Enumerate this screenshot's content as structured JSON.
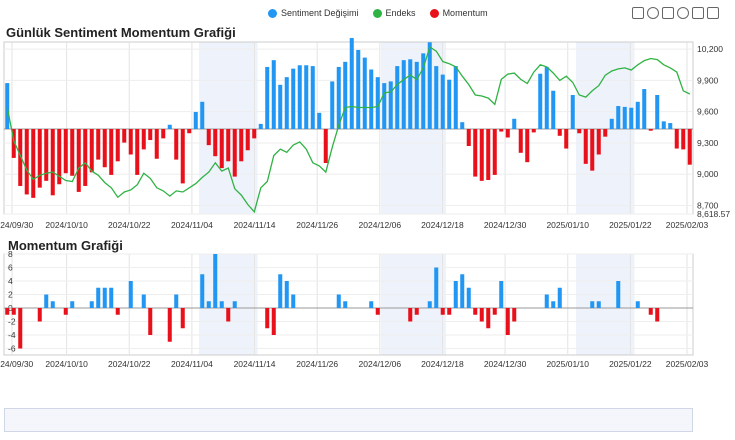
{
  "legend": {
    "items": [
      {
        "label": "Sentiment Değişimi",
        "color": "#2196F3"
      },
      {
        "label": "Endeks",
        "color": "#2FB344"
      },
      {
        "label": "Momentum",
        "color": "#E8101A"
      }
    ]
  },
  "colors": {
    "positive": "#2196F3",
    "negative": "#E8101A",
    "index": "#2FB344"
  },
  "toolbar": {
    "icons": [
      "rect-select-icon",
      "lasso-select-icon",
      "zoom-icon",
      "zoom-reset-icon",
      "restore-icon",
      "save-image-icon"
    ]
  },
  "chart_data": [
    {
      "type": "bar",
      "title": "Günlük Sentiment Momentum Grafiği",
      "x_start": "2024-09-28",
      "x_end": "2025-02-03",
      "xticks": [
        "2024/09/30",
        "2024/10/10",
        "2024/10/22",
        "2024/11/04",
        "2024/11/14",
        "2024/11/26",
        "2024/12/06",
        "2024/12/18",
        "2024/12/30",
        "2025/01/10",
        "2025/01/22",
        "2025/02/03"
      ],
      "yticks_left": [],
      "y2ticks": [
        "10,200",
        "9,900",
        "9,600",
        "9,300",
        "9,000",
        "8,700",
        "8,618.57"
      ],
      "y2lim": [
        8618.57,
        10230
      ],
      "sentiment": [
        0.54,
        -0.34,
        -0.67,
        -0.77,
        -0.81,
        -0.69,
        -0.61,
        -0.78,
        -0.65,
        -0.52,
        -0.55,
        -0.74,
        -0.67,
        -0.51,
        -0.36,
        -0.45,
        -0.54,
        -0.38,
        -0.16,
        -0.3,
        -0.54,
        -0.24,
        -0.13,
        -0.35,
        -0.11,
        0.05,
        -0.36,
        -0.64,
        -0.05,
        0.2,
        0.32,
        -0.19,
        -0.32,
        -0.46,
        -0.38,
        -0.56,
        -0.38,
        -0.25,
        -0.11,
        0.06,
        0.73,
        0.81,
        0.52,
        0.61,
        0.71,
        0.75,
        0.75,
        0.74,
        0.19,
        -0.4,
        0.56,
        0.73,
        0.79,
        1.07,
        0.93,
        0.84,
        0.7,
        0.61,
        0.54,
        0.56,
        0.74,
        0.81,
        0.82,
        0.79,
        0.89,
        1.02,
        0.74,
        0.64,
        0.58,
        0.74,
        0.08,
        -0.2,
        -0.56,
        -0.61,
        -0.6,
        -0.54,
        -0.03,
        -0.1,
        0.12,
        -0.28,
        -0.39,
        -0.04,
        0.65,
        0.73,
        0.45,
        -0.08,
        -0.23,
        0.4,
        -0.05,
        -0.41,
        -0.49,
        -0.3,
        -0.09,
        0.12,
        0.27,
        0.26,
        0.25,
        0.32,
        0.47,
        -0.02,
        0.4,
        0.09,
        0.07,
        -0.23,
        -0.24,
        -0.42
      ],
      "endeks": [
        9640,
        9320,
        9180,
        9040,
        8950,
        8990,
        9010,
        9020,
        8980,
        8940,
        8930,
        9060,
        9110,
        9030,
        8990,
        8920,
        8870,
        8780,
        8830,
        8850,
        8900,
        9010,
        8960,
        8870,
        8840,
        8790,
        8840,
        8830,
        8870,
        8910,
        8970,
        9020,
        9110,
        9030,
        9060,
        8860,
        8800,
        8710,
        8640,
        8870,
        8930,
        9180,
        9240,
        9210,
        9280,
        9310,
        9240,
        9110,
        9080,
        9020,
        9260,
        9470,
        9640,
        9650,
        9640,
        9640,
        9640,
        9650,
        9780,
        9790,
        9860,
        9910,
        9950,
        9910,
        10020,
        10220,
        10180,
        10080,
        10060,
        10030,
        9940,
        9860,
        9760,
        9750,
        9730,
        9670,
        9910,
        9960,
        9970,
        9910,
        9870,
        9980,
        10050,
        10030,
        9970,
        9900,
        9940,
        9880,
        9760,
        9740,
        9800,
        9850,
        9950,
        9990,
        10010,
        10020,
        10000,
        10050,
        10090,
        10110,
        10100,
        10050,
        10020,
        9980,
        9800,
        9770
      ]
    },
    {
      "type": "bar",
      "title": "Momentum Grafiği",
      "yticks": [
        "8",
        "6",
        "4",
        "2",
        "0",
        "-2",
        "-4",
        "-6"
      ],
      "ylim": [
        -7,
        8
      ],
      "xticks": [
        "2024/09/30",
        "2024/10/10",
        "2024/10/22",
        "2024/11/04",
        "2024/11/14",
        "2024/11/26",
        "2024/12/06",
        "2024/12/18",
        "2024/12/30",
        "2025/01/10",
        "2025/01/22",
        "2025/02/03"
      ],
      "momentum": [
        -1,
        -1,
        -6,
        0,
        0,
        -2,
        2,
        1,
        0,
        -1,
        1,
        0,
        0,
        1,
        3,
        3,
        3,
        -1,
        0,
        4,
        0,
        2,
        -4,
        0,
        0,
        -5,
        2,
        -3,
        0,
        0,
        5,
        1,
        8,
        1,
        -2,
        1,
        0,
        0,
        0,
        0,
        -3,
        -4,
        5,
        4,
        2,
        0,
        0,
        0,
        0,
        0,
        0,
        2,
        1,
        0,
        0,
        0,
        1,
        -1,
        0,
        0,
        0,
        0,
        -2,
        -1,
        0,
        1,
        6,
        -1,
        -1,
        4,
        5,
        3,
        -1,
        -2,
        -3,
        -1,
        4,
        -4,
        -2,
        0,
        0,
        0,
        0,
        2,
        1,
        3,
        0,
        0,
        0,
        0,
        1,
        1,
        0,
        0,
        4,
        0,
        0,
        1,
        0,
        -1,
        -2,
        0,
        0,
        0,
        0,
        0
      ]
    }
  ]
}
